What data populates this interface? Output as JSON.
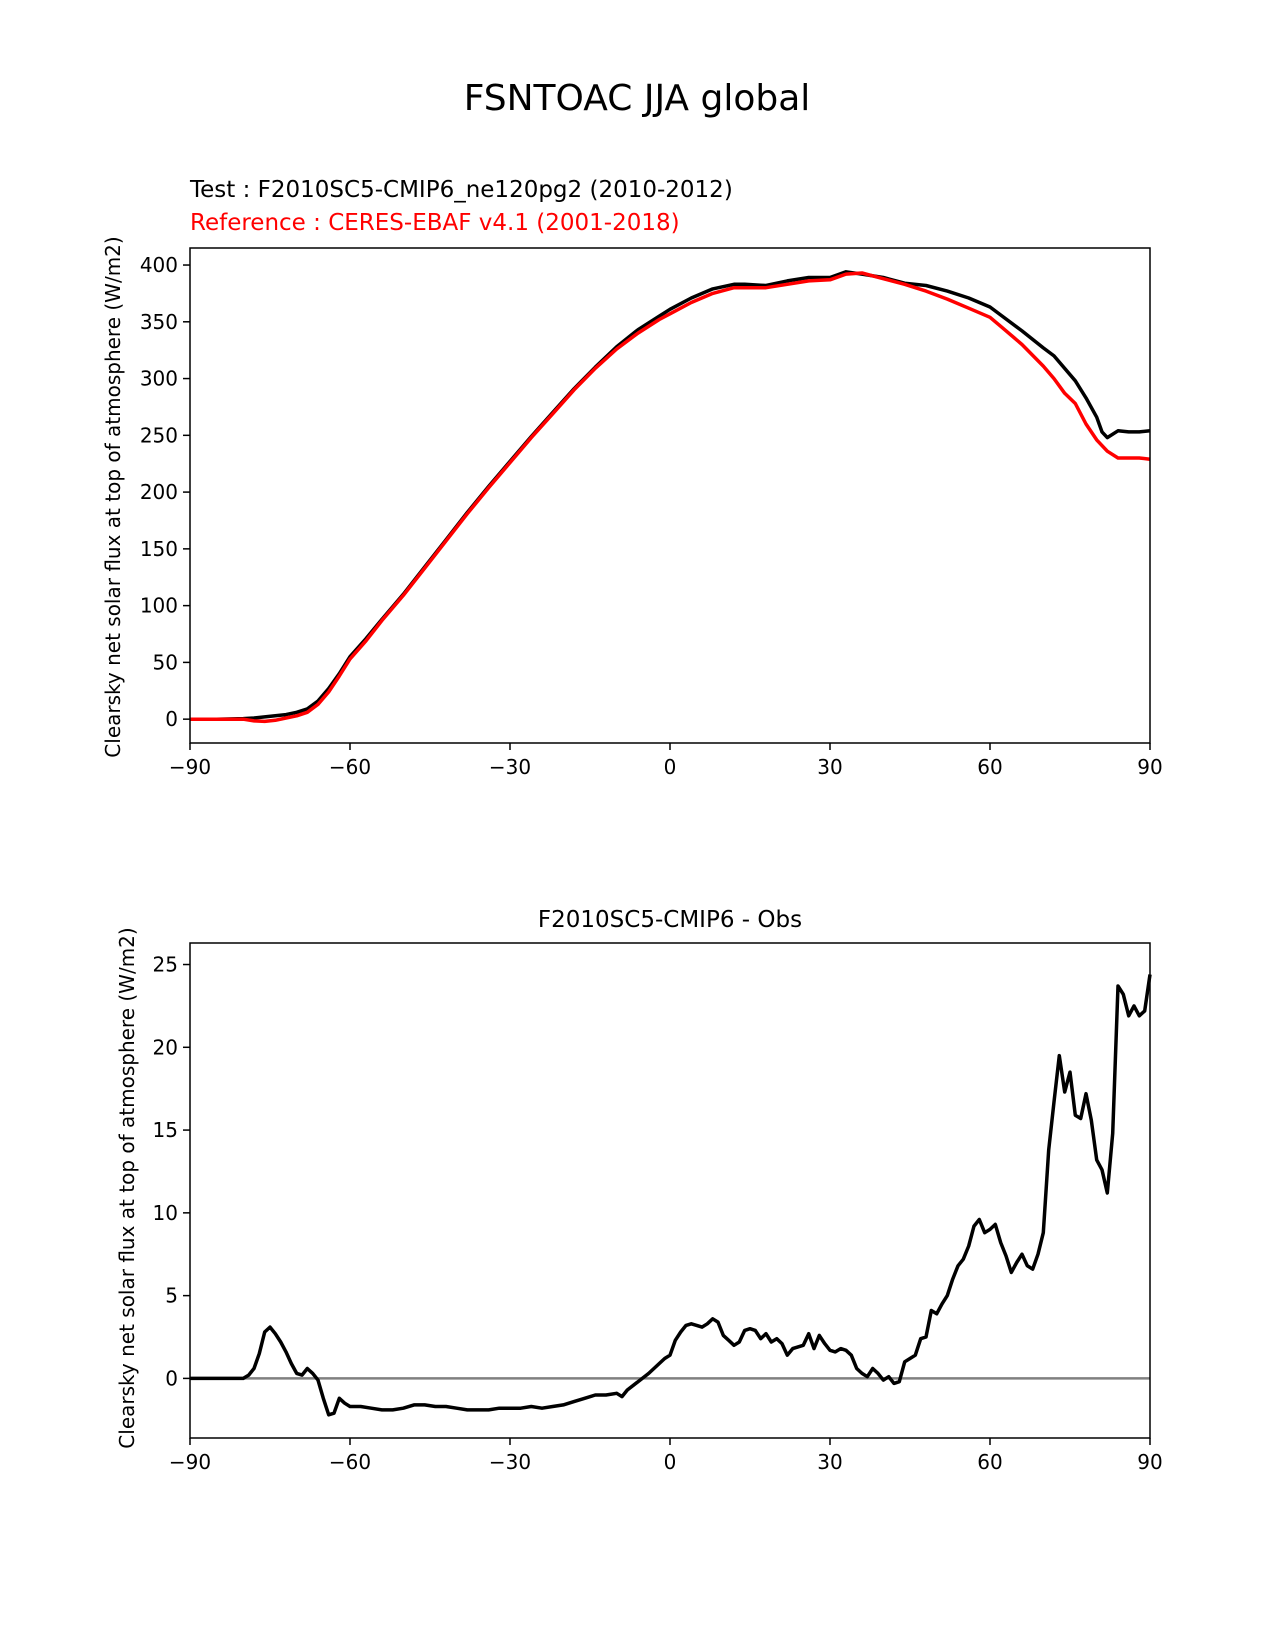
{
  "figure": {
    "title": "FSNTOAC JJA global"
  },
  "colors": {
    "test": "#000000",
    "reference": "#ff0000",
    "zero_line": "#808080"
  },
  "chart_data": [
    {
      "type": "line",
      "title_test": "Test : F2010SC5-CMIP6_ne120pg2 (2010-2012)",
      "title_reference": "Reference : CERES-EBAF v4.1 (2001-2018)",
      "xlabel": "",
      "ylabel": "Clearsky net solar flux at top of atmosphere (W/m2)",
      "xlim": [
        -90,
        90
      ],
      "ylim": [
        -21,
        415
      ],
      "xticks": [
        -90,
        -60,
        -30,
        0,
        30,
        60,
        90
      ],
      "xtick_labels": [
        "−90",
        "−60",
        "−30",
        "0",
        "30",
        "60",
        "90"
      ],
      "yticks": [
        0,
        50,
        100,
        150,
        200,
        250,
        300,
        350,
        400
      ],
      "ytick_labels": [
        "0",
        "50",
        "100",
        "150",
        "200",
        "250",
        "300",
        "350",
        "400"
      ],
      "grid": false,
      "series": [
        {
          "role": "test",
          "x": [
            -90,
            -85,
            -80,
            -78,
            -76,
            -74,
            -72,
            -70,
            -68,
            -66,
            -64,
            -62,
            -60,
            -57,
            -54,
            -50,
            -46,
            -42,
            -38,
            -34,
            -30,
            -26,
            -22,
            -18,
            -14,
            -10,
            -6,
            -2,
            0,
            4,
            8,
            12,
            14,
            18,
            22,
            26,
            30,
            33,
            36,
            40,
            44,
            48,
            52,
            56,
            60,
            62,
            66,
            70,
            72,
            76,
            78,
            80,
            81,
            82,
            84,
            86,
            88,
            90
          ],
          "y": [
            0,
            0,
            0.5,
            1,
            2,
            3,
            4,
            6,
            9,
            16,
            27,
            40,
            55,
            71,
            88,
            110,
            134,
            158,
            182,
            205,
            227,
            249,
            270,
            291,
            310,
            328,
            343,
            355,
            361,
            371,
            379,
            383,
            383,
            382,
            386,
            389,
            389,
            394,
            392,
            389,
            384,
            382,
            377,
            371,
            363,
            356,
            342,
            327,
            320,
            298,
            283,
            266,
            253,
            248,
            254,
            253,
            253,
            254
          ]
        },
        {
          "role": "reference",
          "x": [
            -90,
            -85,
            -80,
            -78,
            -76,
            -74,
            -72,
            -70,
            -68,
            -66,
            -64,
            -62,
            -60,
            -57,
            -54,
            -50,
            -46,
            -42,
            -38,
            -34,
            -30,
            -26,
            -22,
            -18,
            -14,
            -10,
            -6,
            -2,
            0,
            4,
            8,
            12,
            14,
            18,
            22,
            26,
            30,
            33,
            36,
            40,
            44,
            48,
            52,
            56,
            60,
            62,
            66,
            70,
            72,
            74,
            76,
            78,
            80,
            82,
            84,
            86,
            88,
            90
          ],
          "y": [
            0,
            0,
            0,
            -1.5,
            -2,
            -1,
            1,
            3,
            6,
            13,
            24,
            38,
            53,
            69,
            87,
            109,
            133,
            157,
            181,
            204,
            226,
            248,
            269,
            290,
            309,
            326,
            340,
            352,
            357,
            367,
            375,
            380,
            380,
            380,
            383,
            386,
            387,
            392,
            393,
            388,
            383,
            377,
            370,
            362,
            354,
            346,
            330,
            311,
            300,
            287,
            278,
            260,
            246,
            236,
            230,
            230,
            230,
            229
          ]
        }
      ]
    },
    {
      "type": "line",
      "title": "F2010SC5-CMIP6 - Obs",
      "xlabel": "",
      "ylabel": "Clearsky net solar flux at top of atmosphere (W/m2)",
      "xlim": [
        -90,
        90
      ],
      "ylim": [
        -3.6,
        26.3
      ],
      "xticks": [
        -90,
        -60,
        -30,
        0,
        30,
        60,
        90
      ],
      "xtick_labels": [
        "−90",
        "−60",
        "−30",
        "0",
        "30",
        "60",
        "90"
      ],
      "yticks": [
        0,
        5,
        10,
        15,
        20,
        25
      ],
      "ytick_labels": [
        "0",
        "5",
        "10",
        "15",
        "20",
        "25"
      ],
      "zero_line": 0,
      "grid": false,
      "series": [
        {
          "role": "difference",
          "x": [
            -90,
            -85,
            -80,
            -79,
            -78,
            -77,
            -76,
            -75,
            -74,
            -73,
            -72,
            -71,
            -70,
            -69,
            -68,
            -67,
            -66,
            -65,
            -64,
            -63,
            -62,
            -61,
            -60,
            -58,
            -56,
            -54,
            -52,
            -50,
            -48,
            -46,
            -44,
            -42,
            -40,
            -38,
            -36,
            -34,
            -32,
            -30,
            -28,
            -26,
            -24,
            -22,
            -20,
            -18,
            -16,
            -14,
            -12,
            -10,
            -9,
            -8,
            -6,
            -4,
            -2,
            -1,
            0,
            1,
            2,
            3,
            4,
            5,
            6,
            7,
            8,
            9,
            10,
            11,
            12,
            13,
            14,
            15,
            16,
            17,
            18,
            19,
            20,
            21,
            22,
            23,
            24,
            25,
            26,
            27,
            28,
            29,
            30,
            31,
            32,
            33,
            34,
            35,
            36,
            37,
            38,
            39,
            40,
            41,
            42,
            43,
            44,
            45,
            46,
            47,
            48,
            49,
            50,
            51,
            52,
            53,
            54,
            55,
            56,
            57,
            58,
            59,
            60,
            61,
            62,
            63,
            64,
            65,
            66,
            67,
            68,
            69,
            70,
            71,
            72,
            73,
            74,
            75,
            76,
            77,
            78,
            79,
            80,
            81,
            82,
            83,
            84,
            85,
            86,
            87,
            88,
            89,
            90
          ],
          "y": [
            0,
            0,
            0,
            0.2,
            0.6,
            1.5,
            2.8,
            3.1,
            2.7,
            2.2,
            1.6,
            0.9,
            0.3,
            0.2,
            0.6,
            0.3,
            -0.1,
            -1.2,
            -2.2,
            -2.1,
            -1.2,
            -1.5,
            -1.7,
            -1.7,
            -1.8,
            -1.9,
            -1.9,
            -1.8,
            -1.6,
            -1.6,
            -1.7,
            -1.7,
            -1.8,
            -1.9,
            -1.9,
            -1.9,
            -1.8,
            -1.8,
            -1.8,
            -1.7,
            -1.8,
            -1.7,
            -1.6,
            -1.4,
            -1.2,
            -1.0,
            -1.0,
            -0.9,
            -1.1,
            -0.7,
            -0.2,
            0.3,
            0.9,
            1.2,
            1.4,
            2.3,
            2.8,
            3.2,
            3.3,
            3.2,
            3.1,
            3.3,
            3.6,
            3.4,
            2.6,
            2.3,
            2.0,
            2.2,
            2.9,
            3.0,
            2.9,
            2.4,
            2.7,
            2.2,
            2.4,
            2.1,
            1.4,
            1.8,
            1.9,
            2.0,
            2.7,
            1.8,
            2.6,
            2.1,
            1.7,
            1.6,
            1.8,
            1.7,
            1.4,
            0.6,
            0.3,
            0.1,
            0.6,
            0.3,
            -0.1,
            0.1,
            -0.3,
            -0.2,
            1.0,
            1.2,
            1.4,
            2.4,
            2.5,
            4.1,
            3.9,
            4.5,
            5.0,
            6.0,
            6.8,
            7.2,
            8.0,
            9.2,
            9.6,
            8.8,
            9.0,
            9.3,
            8.2,
            7.4,
            6.4,
            7.0,
            7.5,
            6.8,
            6.6,
            7.5,
            8.8,
            13.8,
            16.7,
            19.5,
            17.3,
            18.5,
            15.9,
            15.7,
            17.2,
            15.6,
            13.2,
            12.6,
            11.2,
            14.8,
            23.7,
            23.2,
            21.9,
            22.5,
            21.9,
            22.2,
            24.4
          ]
        }
      ]
    }
  ]
}
